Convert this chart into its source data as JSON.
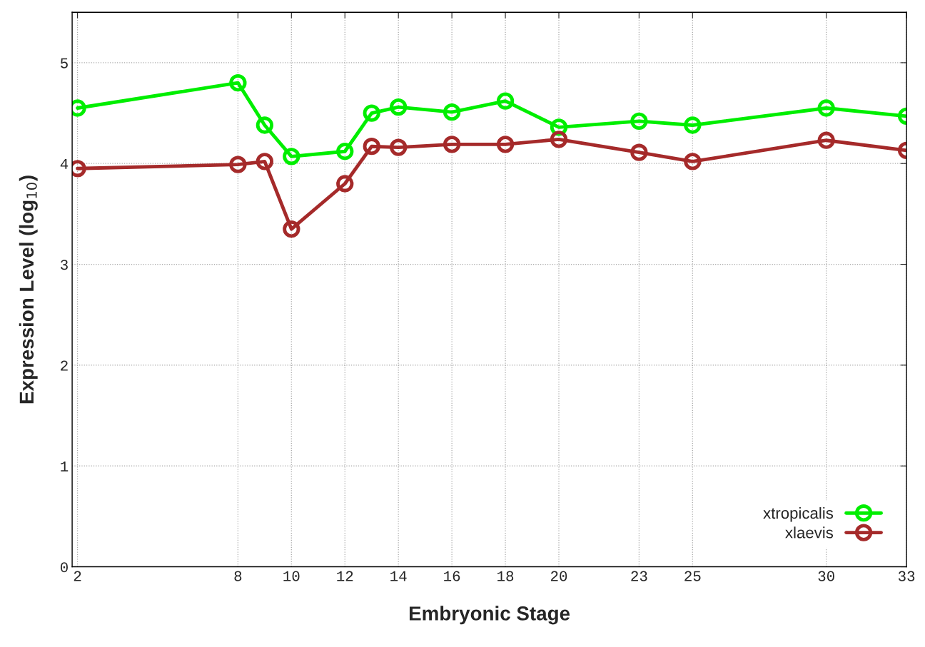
{
  "chart_data": {
    "type": "line",
    "xlabel": "Embryonic Stage",
    "ylabel": "Expression Level (log$_{10}$)",
    "x": [
      2,
      8,
      9,
      10,
      12,
      13,
      14,
      16,
      18,
      20,
      23,
      25,
      30,
      33
    ],
    "series": [
      {
        "name": "xtropicalis",
        "color": "#00ee00",
        "values": [
          4.55,
          4.8,
          4.38,
          4.07,
          4.12,
          4.5,
          4.56,
          4.51,
          4.62,
          4.36,
          4.42,
          4.38,
          4.55,
          4.47
        ]
      },
      {
        "name": "xlaevis",
        "color": "#a52a2a",
        "values": [
          3.95,
          3.99,
          4.02,
          3.35,
          3.8,
          4.17,
          4.16,
          4.19,
          4.19,
          4.24,
          4.11,
          4.02,
          4.23,
          4.13
        ]
      }
    ],
    "xlim": [
      1.8,
      33
    ],
    "xticks": [
      2,
      8,
      10,
      12,
      14,
      16,
      18,
      20,
      23,
      25,
      30,
      33
    ],
    "ylim": [
      0,
      5.5
    ],
    "yticks": [
      0,
      1,
      2,
      3,
      4,
      5
    ],
    "grid": true,
    "legend": "bottom right",
    "marker": "circle",
    "line_style": "solid"
  }
}
